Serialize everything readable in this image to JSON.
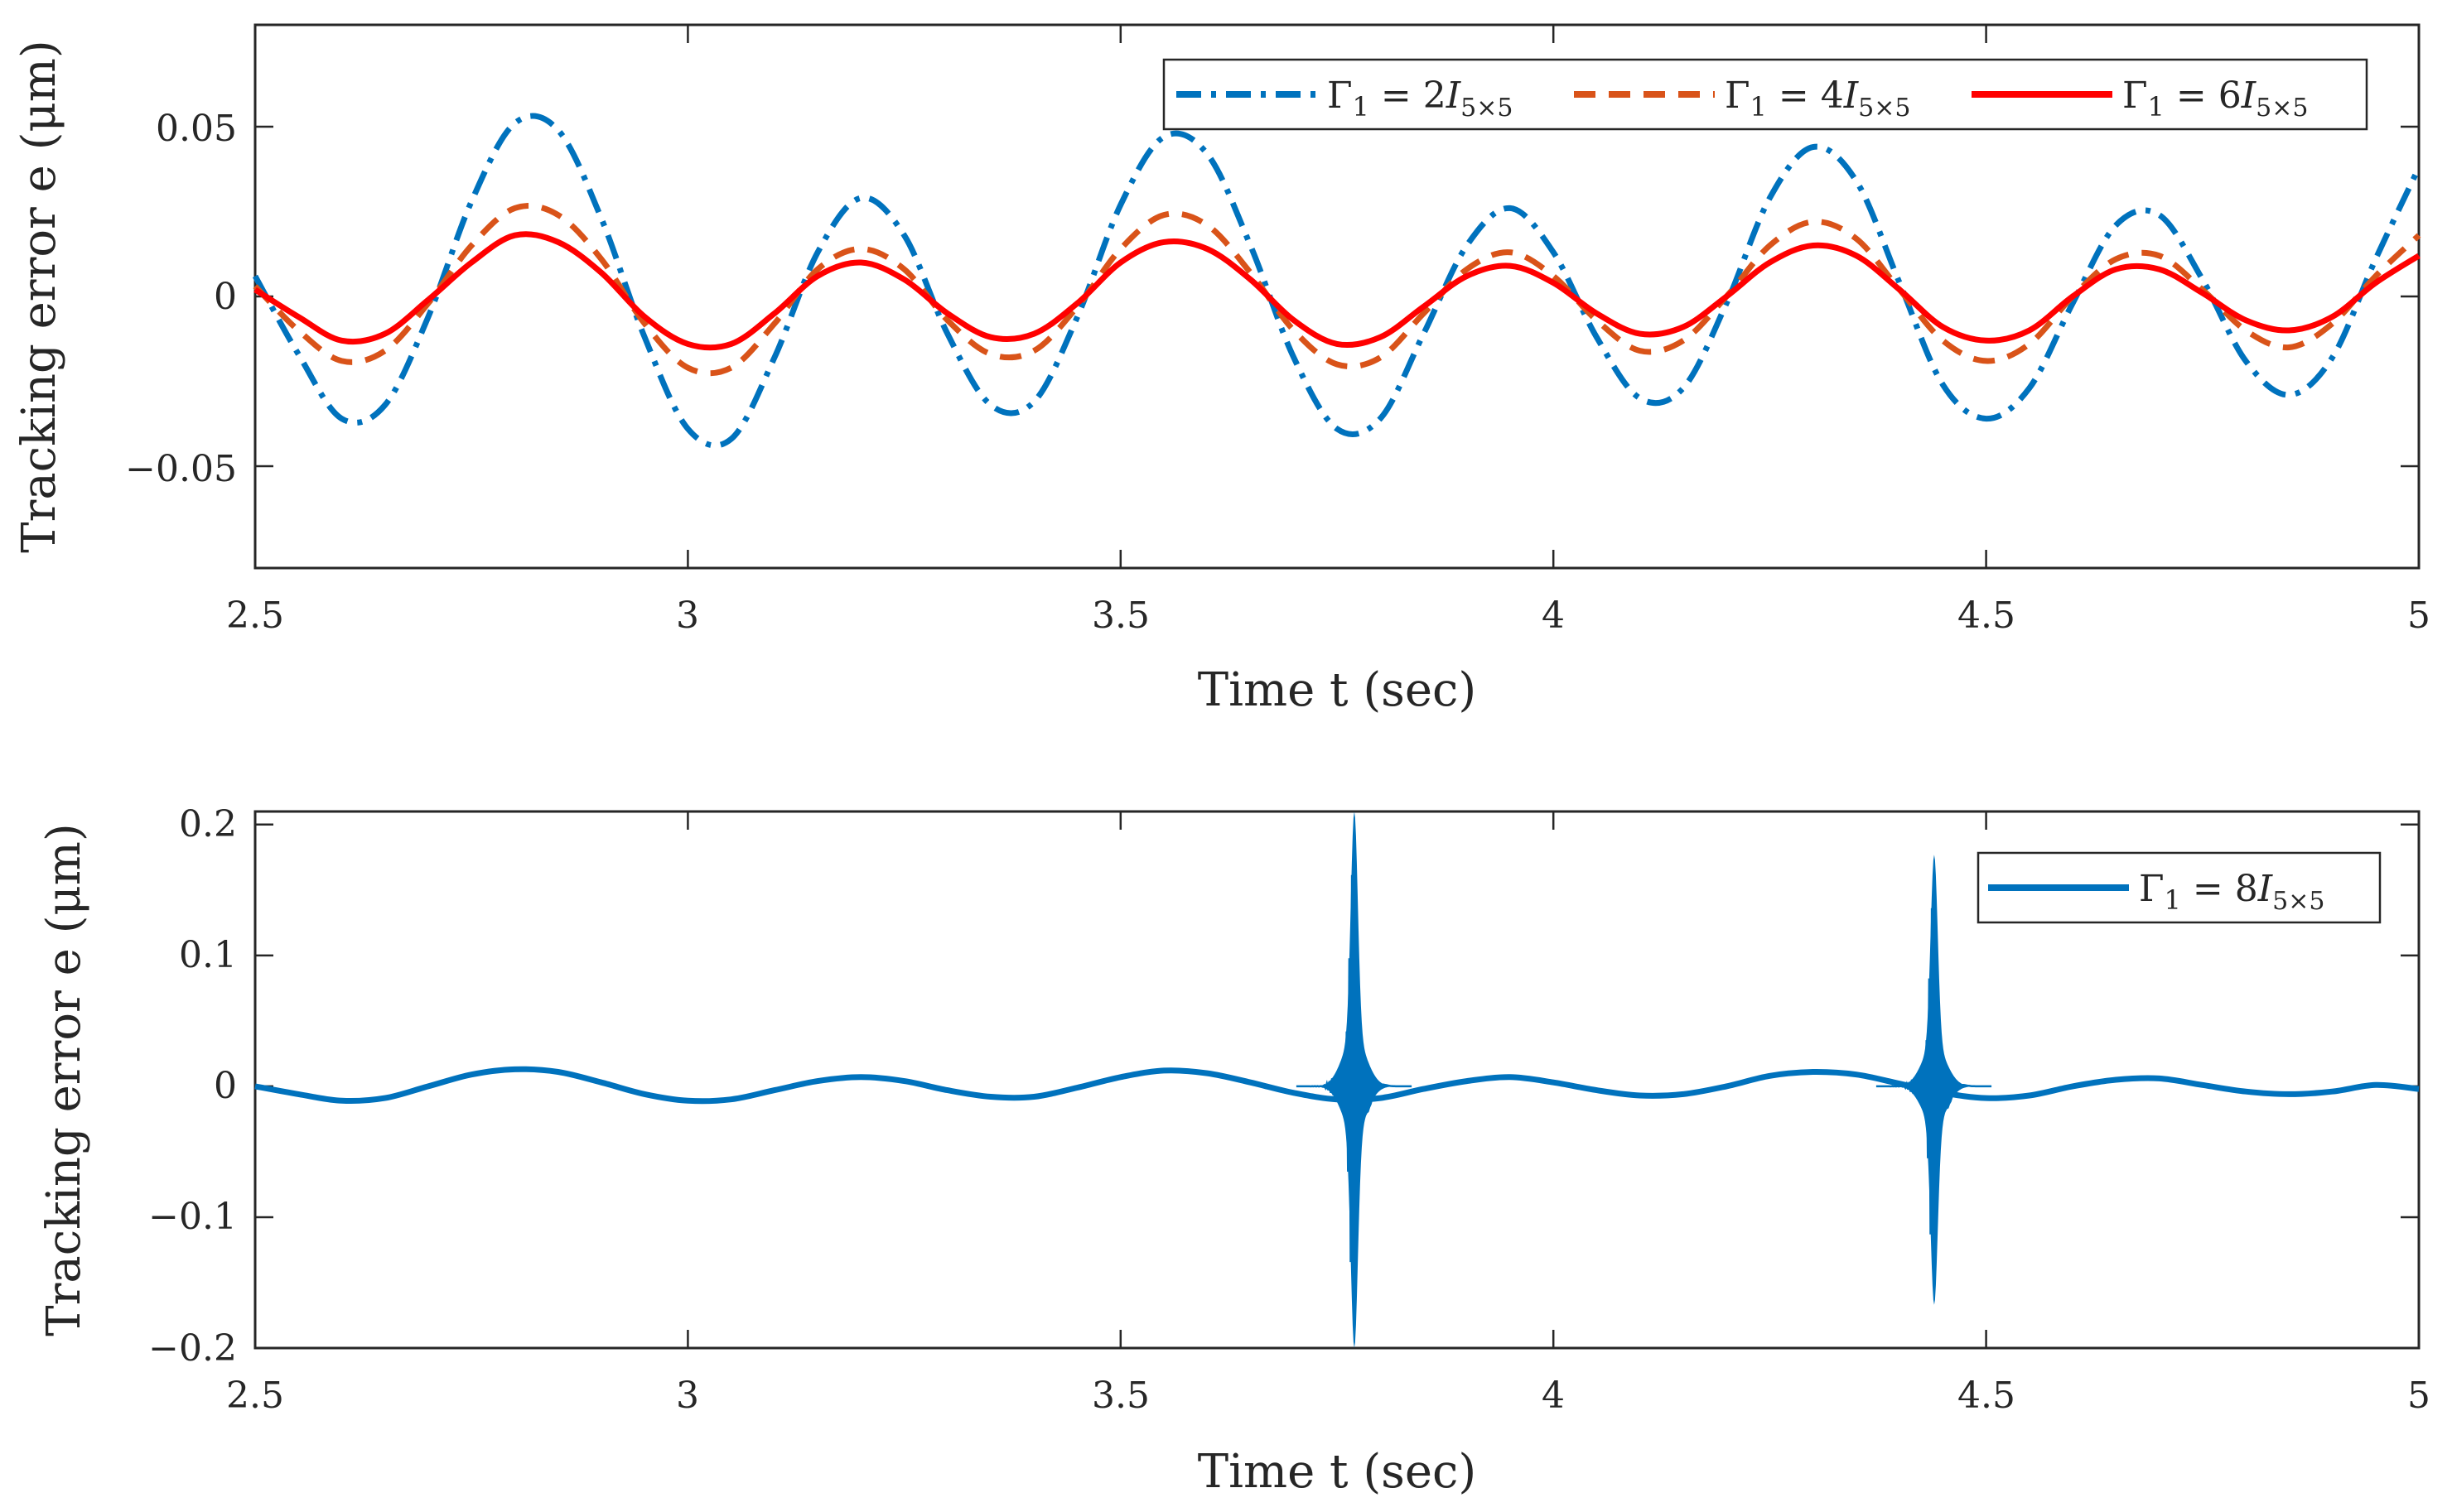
{
  "chart_data": [
    {
      "type": "line",
      "title": "",
      "xlabel": "Time t (sec)",
      "ylabel": "Tracking error e (μm)",
      "xlim": [
        2.5,
        5
      ],
      "ylim": [
        -0.08,
        0.08
      ],
      "xticks": [
        2.5,
        3,
        3.5,
        4,
        4.5,
        5
      ],
      "xtick_labels": [
        "2.5",
        "3",
        "3.5",
        "4",
        "4.5",
        "5"
      ],
      "yticks": [
        -0.05,
        0,
        0.05
      ],
      "ytick_labels": [
        "−0.05",
        "0",
        "0.05"
      ],
      "grid": false,
      "legend_position": "top-right",
      "legend_orientation": "horizontal",
      "series": [
        {
          "name": "Γ1 = 2I5×5",
          "legend_main": "Γ",
          "legend_sub1": "1",
          "legend_eq": " = 2",
          "legend_I": "I",
          "legend_sub2": "5×5",
          "color": "#0072BD",
          "line_style": "dash-dot",
          "sample_period_sec": 0.05,
          "x_start": 2.5,
          "values": [
            0.006,
            -0.017,
            -0.036,
            -0.032,
            -0.006,
            0.028,
            0.051,
            0.049,
            0.023,
            -0.012,
            -0.039,
            -0.042,
            -0.018,
            0.013,
            0.029,
            0.018,
            -0.011,
            -0.032,
            -0.031,
            -0.006,
            0.027,
            0.047,
            0.042,
            0.015,
            -0.018,
            -0.039,
            -0.036,
            -0.011,
            0.015,
            0.026,
            0.013,
            -0.012,
            -0.03,
            -0.027,
            -0.002,
            0.029,
            0.044,
            0.034,
            0.004,
            -0.026,
            -0.036,
            -0.027,
            -0.002,
            0.021,
            0.024,
            0.005,
            -0.019,
            -0.029,
            -0.018,
            0.011,
            0.038
          ]
        },
        {
          "name": "Γ1 = 4I5×5",
          "legend_main": "Γ",
          "legend_sub1": "1",
          "legend_eq": " = 4",
          "legend_I": "I",
          "legend_sub2": "5×5",
          "color": "#D95319",
          "line_style": "dashed",
          "sample_period_sec": 0.05,
          "x_start": 2.5,
          "values": [
            0.003,
            -0.01,
            -0.019,
            -0.016,
            -0.002,
            0.015,
            0.026,
            0.024,
            0.011,
            -0.008,
            -0.021,
            -0.021,
            -0.008,
            0.008,
            0.014,
            0.008,
            -0.007,
            -0.017,
            -0.016,
            -0.003,
            0.014,
            0.024,
            0.021,
            0.007,
            -0.01,
            -0.02,
            -0.018,
            -0.005,
            0.008,
            0.013,
            0.006,
            -0.007,
            -0.016,
            -0.013,
            0.0,
            0.015,
            0.022,
            0.017,
            0.002,
            -0.013,
            -0.019,
            -0.014,
            0.0,
            0.011,
            0.012,
            0.002,
            -0.01,
            -0.015,
            -0.008,
            0.006,
            0.018
          ]
        },
        {
          "name": "Γ1 = 6I5×5",
          "legend_main": "Γ",
          "legend_sub1": "1",
          "legend_eq": " = 6",
          "legend_I": "I",
          "legend_sub2": "5×5",
          "color": "#FF0000",
          "line_style": "solid",
          "sample_period_sec": 0.05,
          "x_start": 2.5,
          "values": [
            0.002,
            -0.006,
            -0.013,
            -0.011,
            -0.001,
            0.01,
            0.018,
            0.016,
            0.007,
            -0.006,
            -0.014,
            -0.014,
            -0.005,
            0.006,
            0.01,
            0.005,
            -0.005,
            -0.012,
            -0.011,
            -0.002,
            0.01,
            0.016,
            0.014,
            0.005,
            -0.007,
            -0.014,
            -0.012,
            -0.003,
            0.006,
            0.009,
            0.004,
            -0.005,
            -0.011,
            -0.009,
            0.0,
            0.01,
            0.015,
            0.012,
            0.002,
            -0.009,
            -0.013,
            -0.01,
            0.0,
            0.008,
            0.008,
            0.001,
            -0.007,
            -0.01,
            -0.006,
            0.004,
            0.012
          ]
        }
      ]
    },
    {
      "type": "line",
      "title": "",
      "xlabel": "Time t (sec)",
      "ylabel": "Tracking error e (μm)",
      "xlim": [
        2.5,
        5
      ],
      "ylim": [
        -0.2,
        0.21
      ],
      "xticks": [
        2.5,
        3,
        3.5,
        4,
        4.5,
        5
      ],
      "xtick_labels": [
        "2.5",
        "3",
        "3.5",
        "4",
        "4.5",
        "5"
      ],
      "yticks": [
        -0.2,
        -0.1,
        0,
        0.1,
        0.2
      ],
      "ytick_labels": [
        "−0.2",
        "−0.1",
        "0",
        "0.1",
        "0.2"
      ],
      "grid": false,
      "legend_position": "top-right",
      "legend_orientation": "vertical",
      "series": [
        {
          "name": "Γ1 = 8I5×5",
          "legend_main": "Γ",
          "legend_sub1": "1",
          "legend_eq": " = 8",
          "legend_I": "I",
          "legend_sub2": "5×5",
          "color": "#0072BD",
          "line_style": "solid",
          "sample_period_sec": 0.05,
          "x_start": 2.5,
          "values": [
            0.0,
            -0.006,
            -0.011,
            -0.009,
            0.0,
            0.009,
            0.013,
            0.011,
            0.003,
            -0.006,
            -0.011,
            -0.01,
            -0.003,
            0.004,
            0.007,
            0.004,
            -0.003,
            -0.008,
            -0.008,
            -0.001,
            0.007,
            0.012,
            0.01,
            0.003,
            -0.005,
            -0.01,
            -0.009,
            -0.002,
            0.004,
            0.007,
            0.003,
            -0.003,
            -0.007,
            -0.006,
            0.0,
            0.008,
            0.011,
            0.009,
            0.002,
            -0.005,
            -0.009,
            -0.007,
            0.0,
            0.005,
            0.006,
            0.001,
            -0.004,
            -0.006,
            -0.004,
            0.001,
            -0.002
          ],
          "bursts": [
            {
              "center_x": 3.77,
              "positive_peak": 0.21,
              "negative_peak": -0.2
            },
            {
              "center_x": 4.44,
              "positive_peak": 0.177,
              "negative_peak": -0.167
            }
          ]
        }
      ]
    }
  ]
}
